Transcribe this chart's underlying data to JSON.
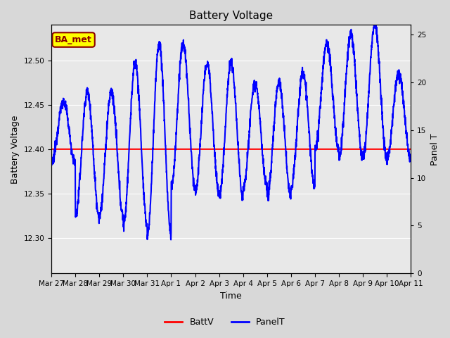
{
  "title": "Battery Voltage",
  "xlabel": "Time",
  "ylabel_left": "Battery Voltage",
  "ylabel_right": "Panel T",
  "bg_color": "#d8d8d8",
  "plot_bg_color": "#e8e8e8",
  "batt_v_value": 12.4,
  "batt_v_color": "red",
  "panel_t_color": "blue",
  "left_ylim": [
    12.26,
    12.54
  ],
  "right_ylim": [
    0,
    26
  ],
  "x_tick_labels": [
    "Mar 27",
    "Mar 28",
    "Mar 29",
    "Mar 30",
    "Mar 31",
    "Apr 1",
    "Apr 2",
    "Apr 3",
    "Apr 4",
    "Apr 5",
    "Apr 6",
    "Apr 7",
    "Apr 8",
    "Apr 9",
    "Apr 10",
    "Apr 11"
  ],
  "annotation_text": "BA_met",
  "annotation_bg": "yellow",
  "annotation_border": "#8b0000",
  "annotation_text_color": "#8b0000",
  "legend_labels": [
    "BattV",
    "PanelT"
  ],
  "title_fontsize": 11,
  "axis_fontsize": 9,
  "tick_fontsize": 7.5
}
